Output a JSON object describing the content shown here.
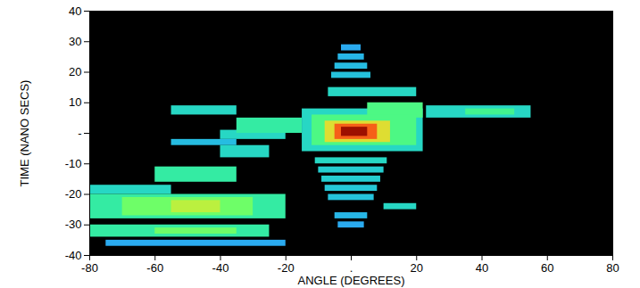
{
  "chart_data": {
    "type": "heatmap",
    "x_label": "ANGLE (DEGREES)",
    "y_label": "TIME (NANO SECS)",
    "xlim": [
      -80,
      80
    ],
    "ylim": [
      -40,
      40
    ],
    "xticks": [
      -80,
      -60,
      -40,
      -20,
      {
        "value": 0,
        "label": "."
      },
      20,
      40,
      60,
      80
    ],
    "yticks": [
      -40,
      -30,
      -20,
      -10,
      {
        "value": 0,
        "label": "-"
      },
      10,
      20,
      30,
      40
    ],
    "value_range": [
      0,
      1
    ],
    "cells": [
      {
        "x1": -75,
        "x2": -20,
        "y1": -37,
        "y2": -35,
        "value": 0.22
      },
      {
        "x1": -3,
        "x2": 3,
        "y1": 27,
        "y2": 29,
        "value": 0.22
      },
      {
        "x1": -4,
        "x2": 4,
        "y1": 24,
        "y2": 26,
        "value": 0.24
      },
      {
        "x1": -5,
        "x2": 5,
        "y1": 21,
        "y2": 23,
        "value": 0.25
      },
      {
        "x1": -6,
        "x2": 6,
        "y1": 18,
        "y2": 20,
        "value": 0.26
      },
      {
        "x1": -7,
        "x2": 20,
        "y1": 12,
        "y2": 15,
        "value": 0.3
      },
      {
        "x1": -4,
        "x2": 4,
        "y1": -31,
        "y2": -29,
        "value": 0.22
      },
      {
        "x1": -5,
        "x2": 5,
        "y1": -28,
        "y2": -26,
        "value": 0.24
      },
      {
        "x1": -7,
        "x2": 7,
        "y1": -22,
        "y2": -20,
        "value": 0.26
      },
      {
        "x1": -8,
        "x2": 8,
        "y1": -19,
        "y2": -17,
        "value": 0.27
      },
      {
        "x1": -9,
        "x2": 9,
        "y1": -16,
        "y2": -14,
        "value": 0.28
      },
      {
        "x1": -10,
        "x2": 10,
        "y1": -13,
        "y2": -11,
        "value": 0.28
      },
      {
        "x1": -11,
        "x2": 11,
        "y1": -10,
        "y2": -8,
        "value": 0.3
      },
      {
        "x1": 10,
        "x2": 20,
        "y1": -25,
        "y2": -23,
        "value": 0.3
      },
      {
        "x1": 23,
        "x2": 55,
        "y1": 5,
        "y2": 9,
        "value": 0.3
      },
      {
        "x1": 35,
        "x2": 50,
        "y1": 6,
        "y2": 8,
        "value": 0.38
      },
      {
        "x1": -55,
        "x2": -35,
        "y1": 6,
        "y2": 9,
        "value": 0.3
      },
      {
        "x1": -40,
        "x2": -20,
        "y1": -2,
        "y2": 1,
        "value": 0.3
      },
      {
        "x1": -55,
        "x2": -35,
        "y1": -4,
        "y2": -2,
        "value": 0.25
      },
      {
        "x1": -40,
        "x2": -25,
        "y1": -8,
        "y2": -4,
        "value": 0.3
      },
      {
        "x1": -35,
        "x2": -15,
        "y1": 0,
        "y2": 5,
        "value": 0.35
      },
      {
        "x1": -80,
        "x2": -55,
        "y1": -20,
        "y2": -17,
        "value": 0.3
      },
      {
        "x1": -60,
        "x2": -35,
        "y1": -16,
        "y2": -11,
        "value": 0.35
      },
      {
        "x1": -80,
        "x2": -25,
        "y1": -34,
        "y2": -30,
        "value": 0.35
      },
      {
        "x1": -60,
        "x2": -35,
        "y1": -33,
        "y2": -31,
        "value": 0.45
      },
      {
        "x1": -80,
        "x2": -20,
        "y1": -28,
        "y2": -20,
        "value": 0.35
      },
      {
        "x1": -70,
        "x2": -30,
        "y1": -27,
        "y2": -21,
        "value": 0.45
      },
      {
        "x1": -55,
        "x2": -40,
        "y1": -26,
        "y2": -22,
        "value": 0.55
      },
      {
        "x1": -15,
        "x2": 22,
        "y1": -6,
        "y2": 8,
        "value": 0.3
      },
      {
        "x1": 5,
        "x2": 22,
        "y1": 5,
        "y2": 10,
        "value": 0.4
      },
      {
        "x1": -12,
        "x2": 20,
        "y1": -4,
        "y2": 6,
        "value": 0.4
      },
      {
        "x1": -8,
        "x2": 12,
        "y1": -3,
        "y2": 4,
        "value": 0.6
      },
      {
        "x1": -5,
        "x2": 8,
        "y1": -2,
        "y2": 3,
        "value": 0.8
      },
      {
        "x1": -3,
        "x2": 5,
        "y1": -1,
        "y2": 2,
        "value": 0.95
      }
    ]
  }
}
